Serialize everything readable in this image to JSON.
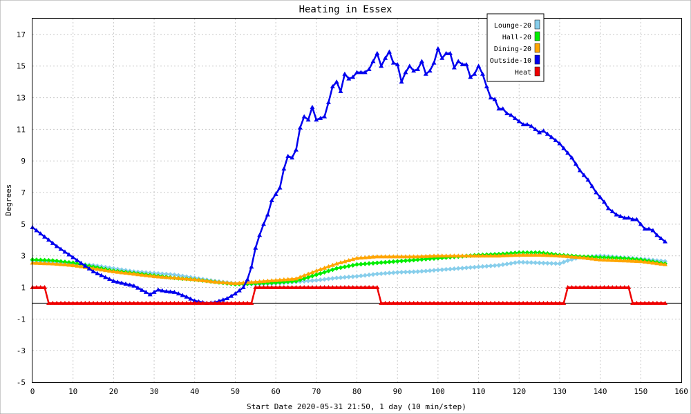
{
  "chart_data": {
    "type": "line",
    "title": "Heating in Essex",
    "xlabel": "Start Date 2020-05-31 21:50, 1 day (10 min/step)",
    "ylabel": "Degrees",
    "xlim": [
      0,
      160
    ],
    "ylim": [
      -5,
      18
    ],
    "xticks": [
      0,
      10,
      20,
      30,
      40,
      50,
      60,
      70,
      80,
      90,
      100,
      110,
      120,
      130,
      140,
      150,
      160
    ],
    "yticks": [
      -5,
      -3,
      -1,
      1,
      3,
      5,
      7,
      9,
      11,
      13,
      15,
      17
    ],
    "grid": true,
    "legend_position": "top-right",
    "series": [
      {
        "name": "Lounge-20",
        "color": "#87ceeb",
        "marker": "diamond",
        "points": [
          [
            0,
            2.7
          ],
          [
            5,
            2.6
          ],
          [
            10,
            2.5
          ],
          [
            15,
            2.4
          ],
          [
            20,
            2.2
          ],
          [
            25,
            2.0
          ],
          [
            30,
            1.9
          ],
          [
            35,
            1.8
          ],
          [
            40,
            1.6
          ],
          [
            45,
            1.4
          ],
          [
            50,
            1.25
          ],
          [
            55,
            1.2
          ],
          [
            60,
            1.25
          ],
          [
            65,
            1.35
          ],
          [
            70,
            1.45
          ],
          [
            75,
            1.6
          ],
          [
            80,
            1.7
          ],
          [
            85,
            1.85
          ],
          [
            90,
            1.95
          ],
          [
            95,
            2.0
          ],
          [
            100,
            2.1
          ],
          [
            105,
            2.2
          ],
          [
            110,
            2.3
          ],
          [
            115,
            2.4
          ],
          [
            120,
            2.6
          ],
          [
            125,
            2.55
          ],
          [
            130,
            2.5
          ],
          [
            132,
            2.7
          ],
          [
            135,
            2.9
          ],
          [
            140,
            3.0
          ],
          [
            145,
            2.9
          ],
          [
            150,
            2.8
          ],
          [
            156,
            2.65
          ]
        ]
      },
      {
        "name": "Hall-20",
        "color": "#00ee00",
        "marker": "diamond",
        "points": [
          [
            0,
            2.75
          ],
          [
            5,
            2.7
          ],
          [
            10,
            2.55
          ],
          [
            15,
            2.3
          ],
          [
            20,
            2.05
          ],
          [
            25,
            1.9
          ],
          [
            30,
            1.75
          ],
          [
            35,
            1.6
          ],
          [
            40,
            1.5
          ],
          [
            45,
            1.35
          ],
          [
            50,
            1.2
          ],
          [
            55,
            1.25
          ],
          [
            60,
            1.3
          ],
          [
            65,
            1.4
          ],
          [
            70,
            1.8
          ],
          [
            75,
            2.2
          ],
          [
            80,
            2.45
          ],
          [
            85,
            2.55
          ],
          [
            90,
            2.65
          ],
          [
            95,
            2.75
          ],
          [
            100,
            2.85
          ],
          [
            105,
            2.95
          ],
          [
            110,
            3.05
          ],
          [
            115,
            3.1
          ],
          [
            120,
            3.2
          ],
          [
            125,
            3.2
          ],
          [
            130,
            3.05
          ],
          [
            135,
            2.95
          ],
          [
            140,
            2.9
          ],
          [
            145,
            2.85
          ],
          [
            150,
            2.75
          ],
          [
            156,
            2.5
          ]
        ]
      },
      {
        "name": "Dining-20",
        "color": "#ffa500",
        "marker": "triangle",
        "points": [
          [
            0,
            2.55
          ],
          [
            5,
            2.5
          ],
          [
            10,
            2.4
          ],
          [
            15,
            2.2
          ],
          [
            20,
            2.0
          ],
          [
            25,
            1.85
          ],
          [
            30,
            1.7
          ],
          [
            35,
            1.6
          ],
          [
            40,
            1.5
          ],
          [
            45,
            1.35
          ],
          [
            50,
            1.25
          ],
          [
            55,
            1.35
          ],
          [
            60,
            1.45
          ],
          [
            65,
            1.55
          ],
          [
            70,
            2.05
          ],
          [
            75,
            2.5
          ],
          [
            80,
            2.85
          ],
          [
            85,
            2.95
          ],
          [
            90,
            2.95
          ],
          [
            95,
            2.95
          ],
          [
            100,
            3.0
          ],
          [
            105,
            3.0
          ],
          [
            110,
            3.0
          ],
          [
            115,
            3.0
          ],
          [
            120,
            3.05
          ],
          [
            125,
            3.05
          ],
          [
            130,
            3.0
          ],
          [
            135,
            2.9
          ],
          [
            140,
            2.75
          ],
          [
            145,
            2.7
          ],
          [
            150,
            2.65
          ],
          [
            156,
            2.45
          ]
        ]
      },
      {
        "name": "Outside-10",
        "color": "#0000ee",
        "marker": "triangle",
        "points": [
          [
            0,
            4.8
          ],
          [
            3,
            4.2
          ],
          [
            6,
            3.6
          ],
          [
            10,
            2.9
          ],
          [
            15,
            2.0
          ],
          [
            20,
            1.4
          ],
          [
            25,
            1.1
          ],
          [
            28,
            0.7
          ],
          [
            29,
            0.55
          ],
          [
            31,
            0.85
          ],
          [
            33,
            0.75
          ],
          [
            35,
            0.7
          ],
          [
            38,
            0.4
          ],
          [
            40,
            0.15
          ],
          [
            43,
            0.0
          ],
          [
            45,
            0.05
          ],
          [
            48,
            0.3
          ],
          [
            50,
            0.6
          ],
          [
            52,
            1.0
          ],
          [
            53,
            1.5
          ],
          [
            54,
            2.3
          ],
          [
            55,
            3.5
          ],
          [
            56,
            4.3
          ],
          [
            57,
            5.0
          ],
          [
            58,
            5.6
          ],
          [
            59,
            6.5
          ],
          [
            60,
            6.9
          ],
          [
            61,
            7.3
          ],
          [
            62,
            8.5
          ],
          [
            63,
            9.3
          ],
          [
            64,
            9.2
          ],
          [
            65,
            9.7
          ],
          [
            66,
            11.1
          ],
          [
            67,
            11.8
          ],
          [
            68,
            11.6
          ],
          [
            69,
            12.4
          ],
          [
            70,
            11.6
          ],
          [
            71,
            11.7
          ],
          [
            72,
            11.8
          ],
          [
            73,
            12.7
          ],
          [
            74,
            13.7
          ],
          [
            75,
            14.0
          ],
          [
            76,
            13.4
          ],
          [
            77,
            14.5
          ],
          [
            78,
            14.2
          ],
          [
            79,
            14.3
          ],
          [
            80,
            14.6
          ],
          [
            81,
            14.6
          ],
          [
            82,
            14.6
          ],
          [
            83,
            14.8
          ],
          [
            84,
            15.3
          ],
          [
            85,
            15.8
          ],
          [
            86,
            15.0
          ],
          [
            87,
            15.5
          ],
          [
            88,
            15.9
          ],
          [
            89,
            15.2
          ],
          [
            90,
            15.1
          ],
          [
            91,
            14.0
          ],
          [
            92,
            14.6
          ],
          [
            93,
            15.0
          ],
          [
            94,
            14.7
          ],
          [
            95,
            14.8
          ],
          [
            96,
            15.3
          ],
          [
            97,
            14.5
          ],
          [
            98,
            14.7
          ],
          [
            99,
            15.2
          ],
          [
            100,
            16.1
          ],
          [
            101,
            15.5
          ],
          [
            102,
            15.8
          ],
          [
            103,
            15.8
          ],
          [
            104,
            14.9
          ],
          [
            105,
            15.3
          ],
          [
            106,
            15.1
          ],
          [
            107,
            15.1
          ],
          [
            108,
            14.3
          ],
          [
            109,
            14.5
          ],
          [
            110,
            15.0
          ],
          [
            111,
            14.5
          ],
          [
            112,
            13.7
          ],
          [
            113,
            13.0
          ],
          [
            114,
            12.9
          ],
          [
            115,
            12.3
          ],
          [
            116,
            12.3
          ],
          [
            117,
            12.0
          ],
          [
            118,
            11.9
          ],
          [
            119,
            11.7
          ],
          [
            120,
            11.5
          ],
          [
            121,
            11.3
          ],
          [
            122,
            11.3
          ],
          [
            123,
            11.2
          ],
          [
            124,
            11.0
          ],
          [
            125,
            10.8
          ],
          [
            126,
            10.9
          ],
          [
            127,
            10.7
          ],
          [
            128,
            10.5
          ],
          [
            129,
            10.3
          ],
          [
            130,
            10.1
          ],
          [
            131,
            9.8
          ],
          [
            132,
            9.5
          ],
          [
            133,
            9.2
          ],
          [
            134,
            8.8
          ],
          [
            135,
            8.4
          ],
          [
            136,
            8.1
          ],
          [
            137,
            7.8
          ],
          [
            138,
            7.4
          ],
          [
            139,
            7.0
          ],
          [
            140,
            6.7
          ],
          [
            141,
            6.4
          ],
          [
            142,
            6.0
          ],
          [
            143,
            5.8
          ],
          [
            144,
            5.6
          ],
          [
            145,
            5.5
          ],
          [
            146,
            5.4
          ],
          [
            147,
            5.4
          ],
          [
            148,
            5.3
          ],
          [
            149,
            5.3
          ],
          [
            150,
            5.0
          ],
          [
            151,
            4.7
          ],
          [
            152,
            4.7
          ],
          [
            153,
            4.6
          ],
          [
            154,
            4.3
          ],
          [
            155,
            4.1
          ],
          [
            156,
            3.9
          ]
        ]
      },
      {
        "name": "Heat",
        "color": "#ee0000",
        "marker": "triangle",
        "points": [
          [
            0,
            1
          ],
          [
            1,
            1
          ],
          [
            2,
            1
          ],
          [
            3,
            1
          ],
          [
            4,
            0
          ],
          [
            5,
            0
          ],
          [
            10,
            0
          ],
          [
            15,
            0
          ],
          [
            20,
            0
          ],
          [
            25,
            0
          ],
          [
            30,
            0
          ],
          [
            35,
            0
          ],
          [
            40,
            0
          ],
          [
            45,
            0
          ],
          [
            50,
            0
          ],
          [
            54,
            0
          ],
          [
            55,
            1
          ],
          [
            60,
            1
          ],
          [
            65,
            1
          ],
          [
            70,
            1
          ],
          [
            75,
            1
          ],
          [
            80,
            1
          ],
          [
            85,
            1
          ],
          [
            86,
            0
          ],
          [
            90,
            0
          ],
          [
            95,
            0
          ],
          [
            100,
            0
          ],
          [
            105,
            0
          ],
          [
            110,
            0
          ],
          [
            115,
            0
          ],
          [
            120,
            0
          ],
          [
            125,
            0
          ],
          [
            131,
            0
          ],
          [
            132,
            1
          ],
          [
            135,
            1
          ],
          [
            140,
            1
          ],
          [
            145,
            1
          ],
          [
            147,
            1
          ],
          [
            148,
            0
          ],
          [
            150,
            0
          ],
          [
            156,
            0
          ]
        ]
      }
    ]
  }
}
